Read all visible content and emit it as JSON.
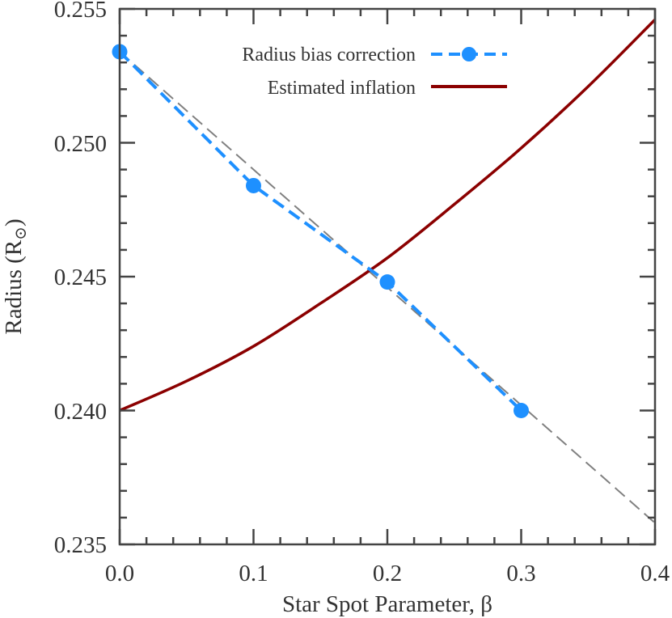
{
  "chart_data": {
    "type": "line",
    "title": "",
    "xlabel": "Star Spot Parameter, β",
    "ylabel_main": "Radius (R",
    "ylabel_sub": "⊙",
    "ylabel_close": ")",
    "xlim": [
      0.0,
      0.4
    ],
    "ylim": [
      0.235,
      0.255
    ],
    "x_ticks": [
      "0.0",
      "0.1",
      "0.2",
      "0.3",
      "0.4"
    ],
    "y_ticks": [
      "0.235",
      "0.240",
      "0.245",
      "0.250",
      "0.255"
    ],
    "x_minor_step": 0.02,
    "y_minor_step": 0.001,
    "grid": false,
    "legend_position": "top-center",
    "series": [
      {
        "name": "Radius bias correction",
        "style": "dashed-with-markers",
        "color": "#1e90ff",
        "x": [
          0.0,
          0.1,
          0.2,
          0.3
        ],
        "y": [
          0.2534,
          0.2484,
          0.2448,
          0.24
        ]
      },
      {
        "name": "Estimated inflation",
        "style": "solid",
        "color": "#8b0000",
        "x": [
          0.0,
          0.05,
          0.1,
          0.15,
          0.2,
          0.25,
          0.3,
          0.35,
          0.4
        ],
        "y": [
          0.24,
          0.2411,
          0.2424,
          0.244,
          0.2457,
          0.2477,
          0.2498,
          0.2521,
          0.2546
        ]
      }
    ],
    "fit_line": {
      "style": "dashed",
      "color": "#808080",
      "x": [
        0.0,
        0.4
      ],
      "y": [
        0.2534,
        0.2358
      ]
    }
  }
}
